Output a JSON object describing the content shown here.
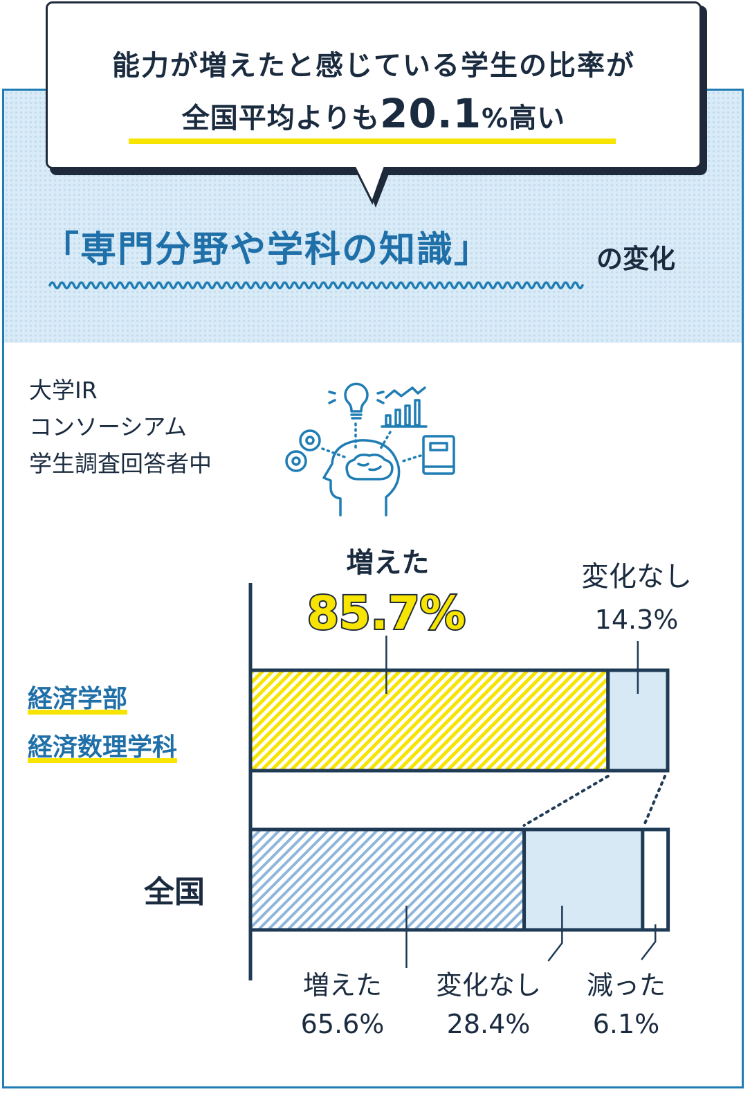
{
  "headline": {
    "line1": "能力が増えたと感じている学生の比率が",
    "line2_prefix": "全国平均よりも",
    "line2_value": "20.1",
    "line2_unit": "%",
    "line2_suffix": "高い"
  },
  "subject": {
    "title": "「専門分野や学科の知識」",
    "suffix": "の変化"
  },
  "source_note": [
    "大学IR",
    "コンソーシアム",
    "学生調査回答者中"
  ],
  "icons": [
    "lightbulb-icon",
    "growth-chart-icon",
    "gears-icon",
    "book-icon",
    "brain-head-icon"
  ],
  "colors": {
    "frame": "#1f7db4",
    "accent_yellow": "#f7e400",
    "navy": "#1e3a55",
    "light_blue": "#d7e9f5",
    "stripe_blue": "#8fb6da",
    "title_blue": "#1f6fa8"
  },
  "chart_data": {
    "type": "bar",
    "orientation": "horizontal",
    "stacked": true,
    "unit": "%",
    "categories": [
      "経済学部\n経済数理学科",
      "全国"
    ],
    "category_lines": [
      [
        "経済学部",
        "経済数理学科"
      ],
      [
        "全国"
      ]
    ],
    "series": [
      {
        "name": "増えた",
        "values": [
          85.7,
          65.6
        ]
      },
      {
        "name": "変化なし",
        "values": [
          14.3,
          28.4
        ]
      },
      {
        "name": "減った",
        "values": [
          0,
          6.1
        ]
      }
    ],
    "xlim": [
      0,
      100
    ],
    "labels": {
      "econ_increased_title": "増えた",
      "econ_increased_value": "85.7%",
      "econ_nochange_title": "変化なし",
      "econ_nochange_value": "14.3%",
      "nat_increased_title": "増えた",
      "nat_increased_value": "65.6%",
      "nat_nochange_title": "変化なし",
      "nat_nochange_value": "28.4%",
      "nat_decreased_title": "減った",
      "nat_decreased_value": "6.1%"
    }
  }
}
